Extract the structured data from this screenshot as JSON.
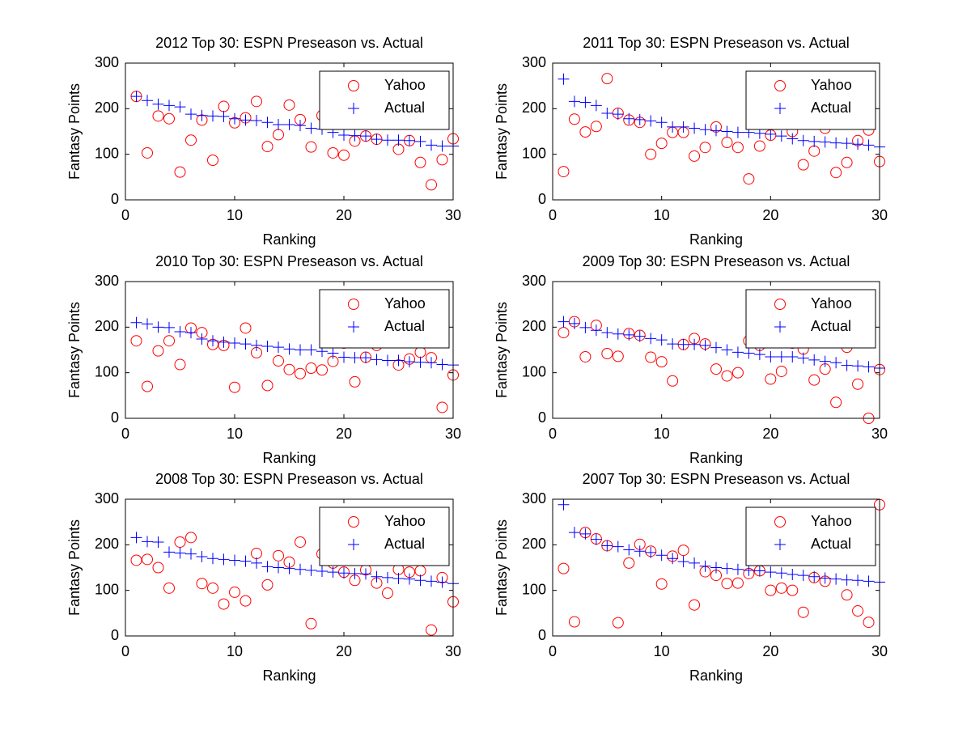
{
  "chart_data": [
    {
      "type": "scatter",
      "title": "2012 Top 30: ESPN Preseason vs. Actual",
      "x_label": "Ranking",
      "y_label": "Fantasy Points",
      "x": [
        1,
        2,
        3,
        4,
        5,
        6,
        7,
        8,
        9,
        10,
        11,
        12,
        13,
        14,
        15,
        16,
        17,
        18,
        19,
        20,
        21,
        22,
        23,
        24,
        25,
        26,
        27,
        28,
        29,
        30
      ],
      "xlim": [
        0,
        30
      ],
      "xticks": [
        0,
        10,
        20,
        30
      ],
      "ylim": [
        0,
        300
      ],
      "yticks": [
        0,
        100,
        200,
        300
      ],
      "legend": "northeast",
      "series": [
        {
          "name": "Yahoo",
          "color": "#ff0000",
          "marker": "circle",
          "values": [
            227,
            103,
            184,
            178,
            61,
            131,
            175,
            87,
            205,
            169,
            180,
            216,
            117,
            143,
            208,
            176,
            116,
            185,
            103,
            98,
            129,
            140,
            133,
            170,
            111,
            130,
            82,
            33,
            88,
            134
          ]
        },
        {
          "name": "Actual",
          "color": "#0000ff",
          "marker": "plus",
          "values": [
            227,
            218,
            210,
            207,
            204,
            188,
            185,
            184,
            183,
            178,
            175,
            174,
            170,
            165,
            165,
            163,
            157,
            155,
            148,
            142,
            141,
            140,
            133,
            131,
            131,
            130,
            128,
            120,
            118,
            118
          ]
        }
      ]
    },
    {
      "type": "scatter",
      "title": "2011 Top 30: ESPN Preseason vs. Actual",
      "x_label": "Ranking",
      "y_label": "Fantasy Points",
      "x": [
        1,
        2,
        3,
        4,
        5,
        6,
        7,
        8,
        9,
        10,
        11,
        12,
        13,
        14,
        15,
        16,
        17,
        18,
        19,
        20,
        21,
        22,
        23,
        24,
        25,
        26,
        27,
        28,
        29,
        30
      ],
      "xlim": [
        0,
        30
      ],
      "xticks": [
        0,
        10,
        20,
        30
      ],
      "ylim": [
        0,
        300
      ],
      "yticks": [
        0,
        100,
        200,
        300
      ],
      "legend": "northeast",
      "series": [
        {
          "name": "Yahoo",
          "color": "#ff0000",
          "marker": "circle",
          "values": [
            62,
            177,
            149,
            161,
            266,
            190,
            175,
            170,
            100,
            124,
            148,
            148,
            96,
            115,
            160,
            126,
            115,
            46,
            118,
            142,
            175,
            150,
            77,
            107,
            157,
            60,
            82,
            130,
            153,
            84
          ]
        },
        {
          "name": "Actual",
          "color": "#0000ff",
          "marker": "plus",
          "values": [
            265,
            216,
            214,
            207,
            190,
            188,
            178,
            176,
            173,
            170,
            160,
            160,
            157,
            154,
            152,
            150,
            148,
            148,
            146,
            144,
            140,
            134,
            130,
            128,
            127,
            125,
            124,
            122,
            120,
            116
          ]
        }
      ]
    },
    {
      "type": "scatter",
      "title": "2010 Top 30: ESPN Preseason vs. Actual",
      "x_label": "Ranking",
      "y_label": "Fantasy Points",
      "x": [
        1,
        2,
        3,
        4,
        5,
        6,
        7,
        8,
        9,
        10,
        11,
        12,
        13,
        14,
        15,
        16,
        17,
        18,
        19,
        20,
        21,
        22,
        23,
        24,
        25,
        26,
        27,
        28,
        29,
        30
      ],
      "xlim": [
        0,
        30
      ],
      "xticks": [
        0,
        10,
        20,
        30
      ],
      "ylim": [
        0,
        300
      ],
      "yticks": [
        0,
        100,
        200,
        300
      ],
      "legend": "northeast",
      "series": [
        {
          "name": "Yahoo",
          "color": "#ff0000",
          "marker": "circle",
          "values": [
            170,
            70,
            148,
            170,
            118,
            198,
            188,
            162,
            160,
            68,
            198,
            144,
            72,
            126,
            107,
            98,
            110,
            106,
            125,
            165,
            80,
            134,
            160,
            170,
            117,
            130,
            145,
            133,
            24,
            95
          ]
        },
        {
          "name": "Actual",
          "color": "#0000ff",
          "marker": "plus",
          "values": [
            210,
            207,
            200,
            199,
            190,
            188,
            174,
            170,
            167,
            165,
            163,
            160,
            158,
            156,
            152,
            150,
            150,
            147,
            143,
            134,
            133,
            133,
            129,
            127,
            127,
            124,
            123,
            122,
            118,
            117
          ]
        }
      ]
    },
    {
      "type": "scatter",
      "title": "2009 Top 30: ESPN Preseason vs. Actual",
      "x_label": "Ranking",
      "y_label": "Fantasy Points",
      "x": [
        1,
        2,
        3,
        4,
        5,
        6,
        7,
        8,
        9,
        10,
        11,
        12,
        13,
        14,
        15,
        16,
        17,
        18,
        19,
        20,
        21,
        22,
        23,
        24,
        25,
        26,
        27,
        28,
        29,
        30
      ],
      "xlim": [
        0,
        30
      ],
      "xticks": [
        0,
        10,
        20,
        30
      ],
      "ylim": [
        0,
        300
      ],
      "yticks": [
        0,
        100,
        200,
        300
      ],
      "legend": "northeast",
      "series": [
        {
          "name": "Yahoo",
          "color": "#ff0000",
          "marker": "circle",
          "values": [
            188,
            212,
            135,
            204,
            142,
            136,
            186,
            182,
            134,
            124,
            82,
            162,
            175,
            163,
            108,
            93,
            100,
            170,
            160,
            86,
            103,
            165,
            152,
            84,
            108,
            35,
            156,
            75,
            0,
            107
          ]
        },
        {
          "name": "Actual",
          "color": "#0000ff",
          "marker": "plus",
          "values": [
            212,
            208,
            199,
            193,
            188,
            185,
            183,
            180,
            175,
            172,
            163,
            162,
            162,
            160,
            155,
            150,
            145,
            143,
            140,
            135,
            135,
            135,
            132,
            128,
            125,
            122,
            116,
            115,
            113,
            110
          ]
        }
      ]
    },
    {
      "type": "scatter",
      "title": "2008 Top 30: ESPN Preseason vs. Actual",
      "x_label": "Ranking",
      "y_label": "Fantasy Points",
      "x": [
        1,
        2,
        3,
        4,
        5,
        6,
        7,
        8,
        9,
        10,
        11,
        12,
        13,
        14,
        15,
        16,
        17,
        18,
        19,
        20,
        21,
        22,
        23,
        24,
        25,
        26,
        27,
        28,
        29,
        30
      ],
      "xlim": [
        0,
        30
      ],
      "xticks": [
        0,
        10,
        20,
        30
      ],
      "ylim": [
        0,
        300
      ],
      "yticks": [
        0,
        100,
        200,
        300
      ],
      "legend": "northeast",
      "series": [
        {
          "name": "Yahoo",
          "color": "#ff0000",
          "marker": "circle",
          "values": [
            166,
            168,
            150,
            105,
            206,
            216,
            115,
            105,
            70,
            96,
            77,
            181,
            112,
            176,
            162,
            206,
            27,
            180,
            160,
            140,
            122,
            145,
            116,
            94,
            146,
            140,
            143,
            13,
            128,
            75
          ]
        },
        {
          "name": "Actual",
          "color": "#0000ff",
          "marker": "plus",
          "values": [
            216,
            207,
            206,
            184,
            182,
            180,
            174,
            170,
            168,
            166,
            164,
            160,
            152,
            150,
            148,
            146,
            144,
            142,
            140,
            138,
            137,
            136,
            130,
            128,
            126,
            125,
            122,
            120,
            118,
            115
          ]
        }
      ]
    },
    {
      "type": "scatter",
      "title": "2007 Top 30: ESPN Preseason vs. Actual",
      "x_label": "Ranking",
      "y_label": "Fantasy Points",
      "x": [
        1,
        2,
        3,
        4,
        5,
        6,
        7,
        8,
        9,
        10,
        11,
        12,
        13,
        14,
        15,
        16,
        17,
        18,
        19,
        20,
        21,
        22,
        23,
        24,
        25,
        26,
        27,
        28,
        29,
        30
      ],
      "xlim": [
        0,
        30
      ],
      "xticks": [
        0,
        10,
        20,
        30
      ],
      "ylim": [
        0,
        300
      ],
      "yticks": [
        0,
        100,
        200,
        300
      ],
      "legend": "northeast",
      "series": [
        {
          "name": "Yahoo",
          "color": "#ff0000",
          "marker": "circle",
          "values": [
            148,
            31,
            227,
            213,
            198,
            29,
            160,
            201,
            186,
            114,
            175,
            188,
            68,
            141,
            133,
            115,
            116,
            137,
            143,
            100,
            105,
            100,
            52,
            128,
            120,
            180,
            90,
            55,
            30,
            288
          ]
        },
        {
          "name": "Actual",
          "color": "#0000ff",
          "marker": "plus",
          "values": [
            288,
            227,
            224,
            212,
            198,
            196,
            189,
            186,
            183,
            177,
            170,
            163,
            160,
            153,
            150,
            148,
            146,
            144,
            143,
            140,
            138,
            135,
            133,
            130,
            127,
            125,
            123,
            122,
            120,
            118
          ]
        }
      ]
    }
  ]
}
